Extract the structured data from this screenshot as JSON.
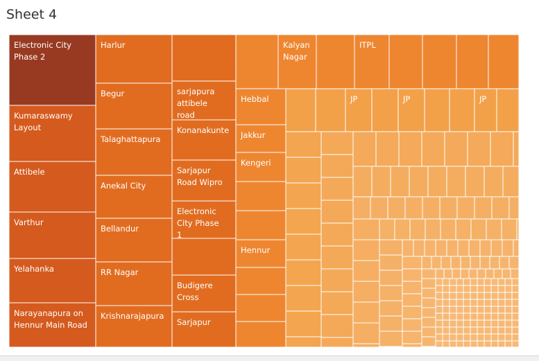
{
  "sheet": {
    "title": "Sheet 4"
  },
  "colors": {
    "darkest": "#983a22",
    "dark": "#d55a1e",
    "mid": "#e16c20",
    "orange": "#ee8630",
    "light": "#f2a149",
    "lightest": "#f7bb7a",
    "border": "#ffffff"
  },
  "chart_data": {
    "type": "treemap",
    "title": "",
    "labels": [
      "Electronic City Phase 2",
      "Kumaraswamy Layout",
      "Attibele",
      "Varthur",
      "Yelahanka",
      "Narayanapura on Hennur Main Road",
      "Harlur",
      "Begur",
      "Talaghattapura",
      "Anekal City",
      "Bellandur",
      "RR Nagar",
      "Krishnarajapura",
      "sarjapura attibele road",
      "Konanakunte",
      "Sarjapur Road Wipro",
      "Electronic City Phase 1",
      "Budigere Cross",
      "Sarjapur",
      "Kalyan Nagar",
      "ITPL",
      "Hebbal",
      "JP",
      "JP",
      "JP",
      "Jakkur",
      "Kengeri",
      "Hennur"
    ]
  }
}
